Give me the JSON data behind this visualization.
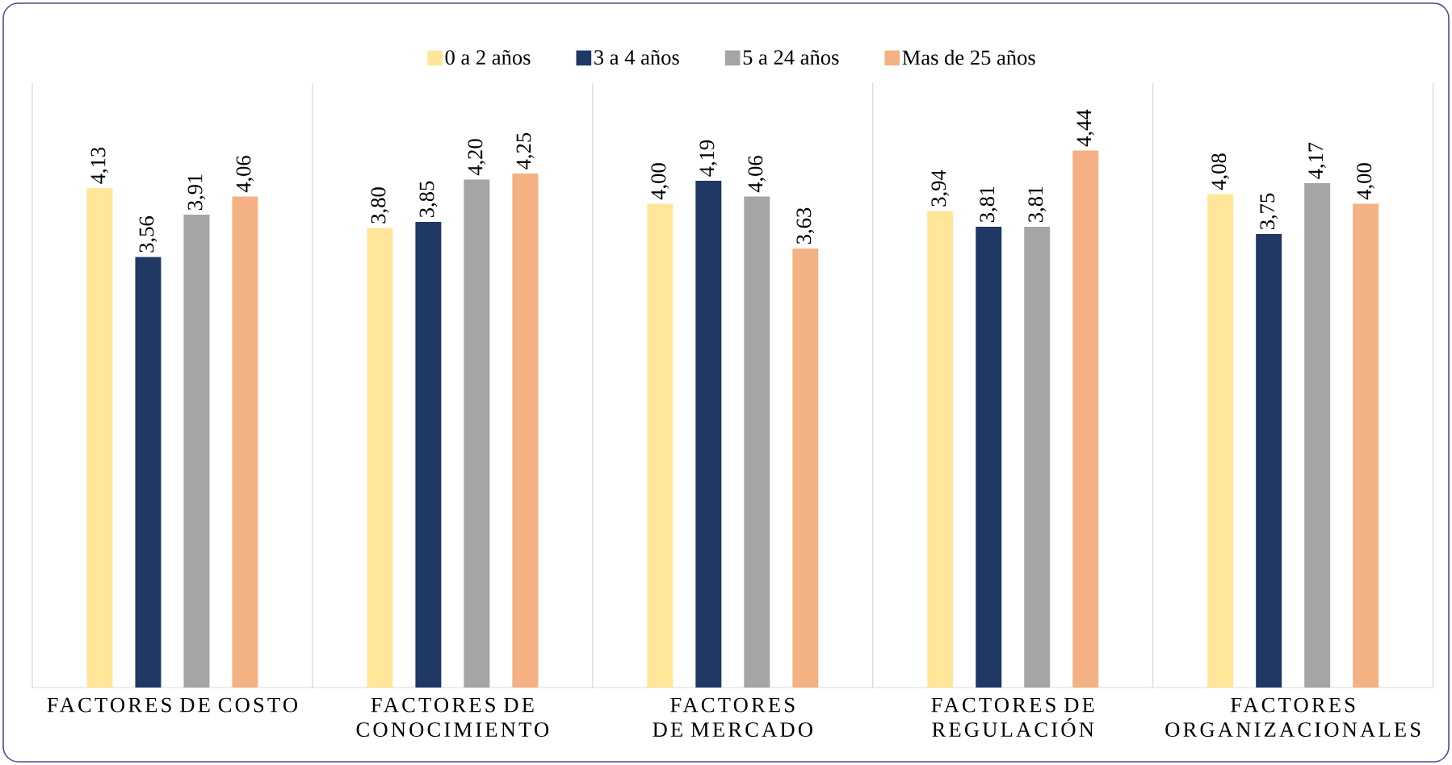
{
  "chart_data": {
    "type": "bar",
    "categories": [
      "FACTORES DE COSTO",
      "FACTORES DE CONOCIMIENTO",
      "FACTORES DE MERCADO",
      "FACTORES DE REGULACIÓN",
      "FACTORES ORGANIZACIONALES"
    ],
    "series": [
      {
        "name": "0 a 2 años",
        "color": "#ffe699",
        "values": [
          4.13,
          3.8,
          4.0,
          3.94,
          4.08
        ],
        "value_labels": [
          "4,13",
          "3,80",
          "4,00",
          "3,94",
          "4,08"
        ]
      },
      {
        "name": "3 a 4 años",
        "color": "#1f3864",
        "values": [
          3.56,
          3.85,
          4.19,
          3.81,
          3.75
        ],
        "value_labels": [
          "3,56",
          "3,85",
          "4,19",
          "3,81",
          "3,75"
        ]
      },
      {
        "name": "5 a 24 años",
        "color": "#a5a5a5",
        "values": [
          3.91,
          4.2,
          4.06,
          3.81,
          4.17
        ],
        "value_labels": [
          "3,91",
          "4,20",
          "4,06",
          "3,81",
          "4,17"
        ]
      },
      {
        "name": "Mas de 25 años",
        "color": "#f4b183",
        "values": [
          4.06,
          4.25,
          3.63,
          4.44,
          4.0
        ],
        "value_labels": [
          "4,06",
          "4,25",
          "3,63",
          "4,44",
          "4,00"
        ]
      }
    ],
    "ylim": [
      0,
      5
    ],
    "tick_labels": "x",
    "grid": "x",
    "legend": "top"
  }
}
